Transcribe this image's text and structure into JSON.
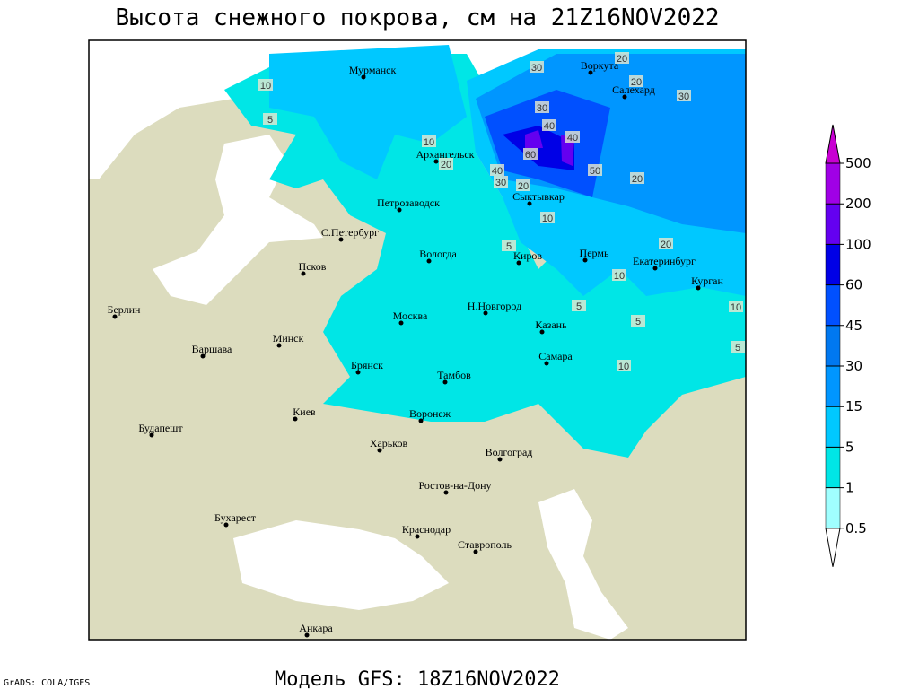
{
  "title": "Высота снежного покрова, см на 21Z16NOV2022",
  "footer": "Модель GFS: 18Z16NOV2022",
  "credit": "GrADS: COLA/IGES",
  "cities": [
    "Мурманск",
    "Воркута",
    "Салехард",
    "Архангельск",
    "Сыктывкар",
    "Петрозаводск",
    "С.Петербург",
    "Вологда",
    "Киров",
    "Пермь",
    "Екатеринбург",
    "Курган",
    "Псков",
    "Н.Новгород",
    "Казань",
    "Москва",
    "Берлин",
    "Минск",
    "Варшава",
    "Брянск",
    "Тамбов",
    "Самара",
    "Киев",
    "Воронеж",
    "Будапешт",
    "Харьков",
    "Волгоград",
    "Ростов-на-Дону",
    "Бухарест",
    "Краснодар",
    "Ставрополь",
    "Анкара"
  ],
  "contour_labels": [
    10,
    5,
    10,
    20,
    40,
    30,
    20,
    60,
    40,
    40,
    50,
    30,
    30,
    20,
    20,
    30,
    10,
    20,
    20,
    10,
    5,
    10,
    5,
    10,
    5,
    5
  ],
  "legend": {
    "levels": [
      0.5,
      1,
      5,
      15,
      30,
      45,
      60,
      100,
      200,
      500
    ],
    "colors": [
      "#ffffff",
      "#a0ffff",
      "#00e6e6",
      "#00c8ff",
      "#0096ff",
      "#0078f0",
      "#0050ff",
      "#0000e6",
      "#6400f0",
      "#a000e6",
      "#c800d2"
    ]
  }
}
